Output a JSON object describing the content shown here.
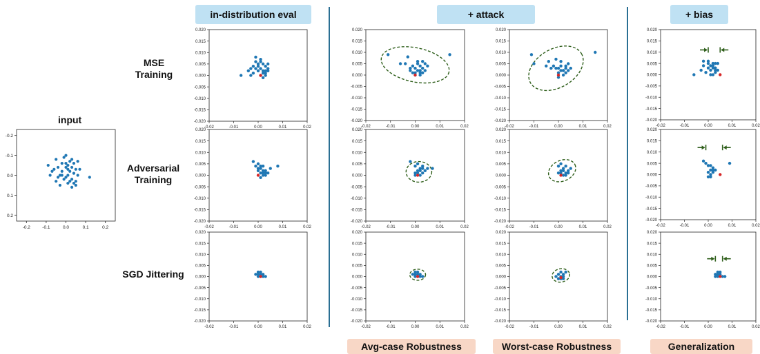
{
  "headers": {
    "in_dist": "in-distribution eval",
    "attack": "+ attack",
    "bias": "+ bias"
  },
  "footers": {
    "avg": "Avg-case Robustness",
    "worst": "Worst-case Robustness",
    "gen": "Generalization"
  },
  "row_labels": {
    "mse": "MSE\nTraining",
    "adv": "Adversarial\nTraining",
    "sgd": "SGD Jittering"
  },
  "input_label": "input",
  "colors": {
    "points": "#1f77b4",
    "target": "#d62728",
    "ellipse": "#2e5e1a",
    "arrow": "#2e5e1a",
    "header_blue": "#bfe1f3",
    "footer_peach": "#f8d7c6",
    "divider": "#2a6f93"
  },
  "chart_data": [
    {
      "id": "input",
      "type": "scatter",
      "xlim": [
        -0.25,
        0.25
      ],
      "ylim": [
        -0.23,
        0.23
      ],
      "xticks": [
        "-0.2",
        "-0.1",
        "0.0",
        "0.1",
        "0.2"
      ],
      "yticks": [
        "-0.2",
        "-0.1",
        "0.0",
        "0.1",
        "0.2"
      ],
      "x": [
        -0.09,
        -0.08,
        -0.06,
        -0.05,
        -0.05,
        -0.04,
        -0.03,
        -0.03,
        -0.02,
        -0.02,
        -0.01,
        -0.01,
        0.0,
        0.0,
        0.0,
        0.01,
        0.01,
        0.01,
        0.02,
        0.02,
        0.03,
        0.03,
        0.03,
        0.04,
        0.04,
        0.05,
        0.05,
        0.06,
        0.06,
        0.07,
        -0.07,
        -0.04,
        0.02,
        0.05,
        0.12,
        0.0,
        0.03,
        -0.02,
        0.01,
        0.04
      ],
      "y": [
        0.05,
        0.0,
        0.03,
        -0.03,
        0.08,
        0.04,
        0.0,
        -0.05,
        0.06,
        0.02,
        -0.02,
        0.09,
        0.04,
        -0.01,
        0.1,
        0.05,
        0.0,
        -0.04,
        0.07,
        0.02,
        0.04,
        -0.02,
        -0.06,
        0.06,
        0.01,
        0.03,
        -0.03,
        0.07,
        0.0,
        0.03,
        0.02,
        -0.01,
        -0.03,
        -0.05,
        -0.01,
        0.06,
        0.08,
        0.0,
        0.03,
        -0.04
      ]
    },
    {
      "id": "mse_id",
      "type": "scatter",
      "xlim": [
        -0.02,
        0.02
      ],
      "ylim": [
        -0.02,
        0.02
      ],
      "x": [
        -0.007,
        -0.004,
        -0.003,
        -0.002,
        -0.001,
        0.0,
        0.0,
        0.001,
        0.001,
        0.002,
        0.002,
        0.003,
        0.003,
        0.004,
        0.004,
        -0.001,
        0.001,
        0.002,
        0.003,
        0.004,
        0.0,
        -0.002,
        0.002,
        0.001,
        0.003,
        -0.003,
        -0.001
      ],
      "y": [
        0.0,
        0.002,
        0.003,
        0.001,
        0.008,
        0.004,
        0.002,
        0.003,
        0.007,
        0.001,
        0.005,
        0.0,
        0.004,
        0.002,
        0.005,
        0.006,
        0.0,
        -0.001,
        0.001,
        0.003,
        0.005,
        0.004,
        0.002,
        0.006,
        0.002,
        0.0,
        0.003
      ],
      "target": [
        0.001,
        0.0
      ]
    },
    {
      "id": "mse_avg",
      "type": "scatter",
      "xlim": [
        -0.02,
        0.02
      ],
      "ylim": [
        -0.02,
        0.02
      ],
      "x": [
        -0.011,
        -0.006,
        -0.004,
        -0.003,
        -0.002,
        -0.001,
        0.0,
        0.0,
        0.001,
        0.001,
        0.002,
        0.002,
        0.003,
        0.003,
        0.004,
        0.005,
        0.014,
        -0.002,
        0.001,
        0.002,
        0.0,
        -0.001,
        0.003,
        0.004,
        0.002
      ],
      "y": [
        0.009,
        0.005,
        0.005,
        0.008,
        0.003,
        0.004,
        0.003,
        0.001,
        0.002,
        0.005,
        0.0,
        0.004,
        0.001,
        0.003,
        0.005,
        0.004,
        0.009,
        0.002,
        0.006,
        0.002,
        0.0,
        0.001,
        0.006,
        0.002,
        0.001
      ],
      "target": [
        0.0,
        0.0
      ],
      "ellipse": {
        "cx": 0.0,
        "cy": 0.0045,
        "rx": 0.014,
        "ry": 0.0075,
        "rot": 12
      }
    },
    {
      "id": "mse_worst",
      "type": "scatter",
      "xlim": [
        -0.02,
        0.02
      ],
      "ylim": [
        -0.02,
        0.02
      ],
      "x": [
        -0.011,
        -0.01,
        -0.005,
        -0.004,
        -0.003,
        -0.002,
        -0.001,
        0.0,
        0.0,
        0.001,
        0.001,
        0.002,
        0.002,
        0.003,
        0.003,
        0.004,
        0.015,
        -0.001,
        0.001,
        0.002,
        0.0,
        0.003,
        0.004,
        0.005
      ],
      "y": [
        0.009,
        0.005,
        0.004,
        0.006,
        0.003,
        0.004,
        0.007,
        0.003,
        0.001,
        0.002,
        0.004,
        0.0,
        0.002,
        0.001,
        0.003,
        0.005,
        0.01,
        0.003,
        0.006,
        0.002,
        -0.001,
        0.004,
        0.002,
        0.003
      ],
      "target": [
        0.0,
        0.0
      ],
      "ellipse": {
        "cx": -0.001,
        "cy": 0.003,
        "rx": 0.012,
        "ry": 0.0085,
        "rot": -30
      }
    },
    {
      "id": "mse_bias",
      "type": "scatter",
      "xlim": [
        -0.02,
        0.02
      ],
      "ylim": [
        -0.02,
        0.02
      ],
      "xticks": [
        "-0.02",
        "-0.01",
        "0.00",
        "0.01",
        "0.02"
      ],
      "x": [
        -0.006,
        -0.003,
        -0.002,
        -0.001,
        0.0,
        0.0,
        0.001,
        0.001,
        0.002,
        0.002,
        0.003,
        0.003,
        0.004,
        0.004,
        -0.002,
        0.001,
        0.002,
        0.003,
        0.0,
        0.002,
        0.003
      ],
      "y": [
        0.0,
        0.002,
        0.004,
        0.001,
        0.003,
        0.005,
        0.002,
        0.004,
        0.0,
        0.005,
        0.003,
        0.001,
        0.005,
        0.002,
        0.006,
        0.0,
        0.004,
        0.002,
        0.006,
        0.003,
        0.005
      ],
      "target": [
        0.005,
        0.0
      ],
      "arrows": {
        "y": 0.011,
        "left": 0.0,
        "right": 0.005
      }
    },
    {
      "id": "adv_id",
      "type": "scatter",
      "xlim": [
        -0.02,
        0.02
      ],
      "ylim": [
        -0.02,
        0.02
      ],
      "x": [
        -0.002,
        -0.001,
        0.0,
        0.0,
        0.001,
        0.001,
        0.002,
        0.002,
        0.003,
        0.003,
        0.004,
        0.005,
        0.008,
        0.001,
        0.002,
        0.0,
        0.003,
        0.002,
        0.001
      ],
      "y": [
        0.006,
        0.004,
        0.005,
        0.002,
        0.003,
        0.001,
        0.004,
        0.0,
        0.002,
        0.001,
        0.001,
        0.003,
        0.004,
        -0.001,
        0.002,
        0.003,
        0.0,
        0.001,
        0.004
      ],
      "target": [
        0.0,
        0.0
      ]
    },
    {
      "id": "adv_avg",
      "type": "scatter",
      "xlim": [
        -0.02,
        0.02
      ],
      "ylim": [
        -0.02,
        0.02
      ],
      "x": [
        -0.002,
        0.0,
        0.0,
        0.001,
        0.001,
        0.002,
        0.002,
        0.003,
        0.003,
        0.004,
        0.005,
        0.007,
        0.001,
        0.002,
        0.0,
        0.003
      ],
      "y": [
        0.006,
        0.004,
        0.001,
        0.002,
        0.005,
        0.0,
        0.003,
        0.001,
        0.004,
        0.002,
        0.003,
        0.003,
        0.001,
        0.002,
        0.0,
        0.003
      ],
      "target": [
        0.001,
        0.0
      ],
      "ellipse": {
        "cx": 0.0015,
        "cy": 0.0015,
        "rx": 0.0052,
        "ry": 0.0045,
        "rot": 0
      }
    },
    {
      "id": "adv_worst",
      "type": "scatter",
      "xlim": [
        -0.02,
        0.02
      ],
      "ylim": [
        -0.02,
        0.02
      ],
      "x": [
        0.0,
        0.0,
        0.001,
        0.001,
        0.002,
        0.002,
        0.003,
        0.003,
        0.004,
        0.005,
        0.001,
        0.002,
        0.003,
        0.004
      ],
      "y": [
        0.004,
        0.001,
        0.002,
        0.005,
        0.0,
        0.003,
        0.001,
        0.004,
        0.002,
        0.003,
        0.001,
        0.002,
        0.0,
        0.001
      ],
      "target": [
        0.001,
        0.0
      ],
      "ellipse": {
        "cx": 0.0015,
        "cy": 0.002,
        "rx": 0.0058,
        "ry": 0.0045,
        "rot": -25
      }
    },
    {
      "id": "adv_bias",
      "type": "scatter",
      "xlim": [
        -0.02,
        0.02
      ],
      "ylim": [
        -0.02,
        0.02
      ],
      "xticks": [
        "-0.02",
        "-0.01",
        "0.00",
        "0.01",
        "0.02"
      ],
      "x": [
        -0.002,
        -0.001,
        0.0,
        0.0,
        0.001,
        0.001,
        0.002,
        0.002,
        0.003,
        0.009,
        0.0,
        0.001,
        0.002,
        0.001
      ],
      "y": [
        0.006,
        0.005,
        0.004,
        0.001,
        0.002,
        0.0,
        0.003,
        0.001,
        0.002,
        0.005,
        -0.001,
        0.004,
        0.002,
        -0.001
      ],
      "target": [
        0.005,
        0.0
      ],
      "arrows": {
        "y": 0.012,
        "left": -0.001,
        "right": 0.006
      }
    },
    {
      "id": "sgd_id",
      "type": "scatter",
      "xlim": [
        -0.02,
        0.02
      ],
      "ylim": [
        -0.02,
        0.02
      ],
      "xticks": [
        "-0.02",
        "-0.01",
        "0.00",
        "0.01",
        "0.02"
      ],
      "x": [
        -0.001,
        0.0,
        0.0,
        0.001,
        0.001,
        0.002,
        0.002,
        0.003,
        0.0,
        0.001
      ],
      "y": [
        0.001,
        0.002,
        0.0,
        0.001,
        0.002,
        0.0,
        0.001,
        0.0,
        0.001,
        0.0
      ],
      "target": [
        0.001,
        0.0
      ]
    },
    {
      "id": "sgd_avg",
      "type": "scatter",
      "xlim": [
        -0.02,
        0.02
      ],
      "ylim": [
        -0.02,
        0.02
      ],
      "xticks": [
        "-0.02",
        "-0.01",
        "0.00",
        "0.01",
        "0.02"
      ],
      "x": [
        -0.001,
        0.0,
        0.0,
        0.001,
        0.001,
        0.002,
        0.002,
        0.003,
        0.0,
        0.001
      ],
      "y": [
        0.001,
        0.002,
        0.0,
        0.001,
        0.002,
        0.0,
        0.001,
        0.0,
        0.001,
        0.0
      ],
      "target": [
        0.001,
        0.0
      ],
      "ellipse": {
        "cx": 0.001,
        "cy": 0.0008,
        "rx": 0.0032,
        "ry": 0.0025,
        "rot": 0
      }
    },
    {
      "id": "sgd_worst",
      "type": "scatter",
      "xlim": [
        -0.02,
        0.02
      ],
      "ylim": [
        -0.02,
        0.02
      ],
      "xticks": [
        "-0.02",
        "-0.01",
        "0.00",
        "0.01",
        "0.02"
      ],
      "x": [
        -0.001,
        0.0,
        0.001,
        0.001,
        0.002,
        0.002,
        0.003,
        0.002,
        0.001,
        0.0
      ],
      "y": [
        0.0,
        0.001,
        0.002,
        0.0,
        0.001,
        -0.001,
        0.002,
        0.0,
        -0.001,
        -0.001
      ],
      "target": [
        0.001,
        -0.0005
      ],
      "ellipse": {
        "cx": 0.001,
        "cy": 0.0005,
        "rx": 0.0036,
        "ry": 0.003,
        "rot": -10
      }
    },
    {
      "id": "sgd_bias",
      "type": "scatter",
      "xlim": [
        -0.02,
        0.02
      ],
      "ylim": [
        -0.02,
        0.02
      ],
      "xticks": [
        "-0.02",
        "-0.01",
        "0.00",
        "0.01",
        "0.02"
      ],
      "x": [
        0.003,
        0.004,
        0.004,
        0.005,
        0.005,
        0.006,
        0.003,
        0.007,
        0.004
      ],
      "y": [
        0.001,
        0.002,
        0.0,
        0.001,
        0.002,
        0.0,
        0.0,
        0.0,
        0.001
      ],
      "target": [
        0.005,
        0.0
      ],
      "arrows": {
        "y": 0.008,
        "left": 0.003,
        "right": 0.006
      }
    }
  ]
}
